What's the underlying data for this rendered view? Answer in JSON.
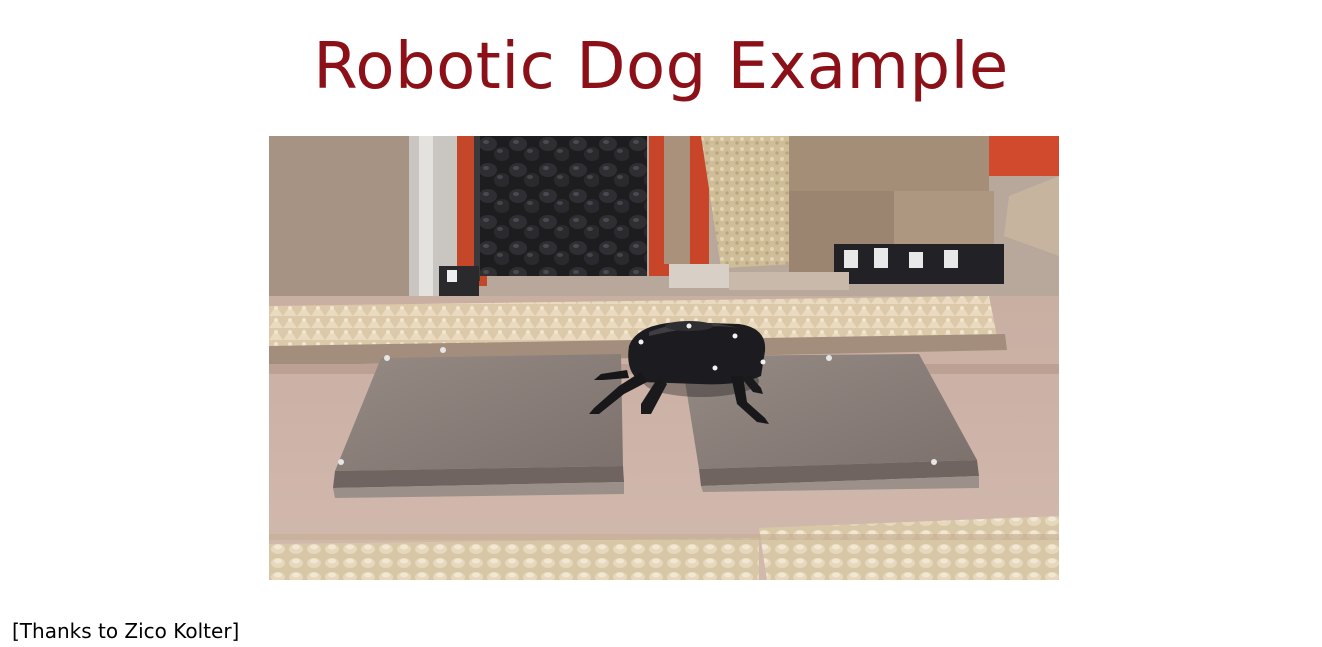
{
  "slide": {
    "title": "Robotic Dog Example",
    "credit": "[Thanks to Zico Kolter]"
  },
  "photo": {
    "subject": "quadruped-robot-dog-on-boards-icon"
  },
  "colors": {
    "title": "#8b1018",
    "floor": "#cbb1a6",
    "board": "#8a7e78",
    "robot": "#1c1c20",
    "foam": "#d9c6a8"
  }
}
